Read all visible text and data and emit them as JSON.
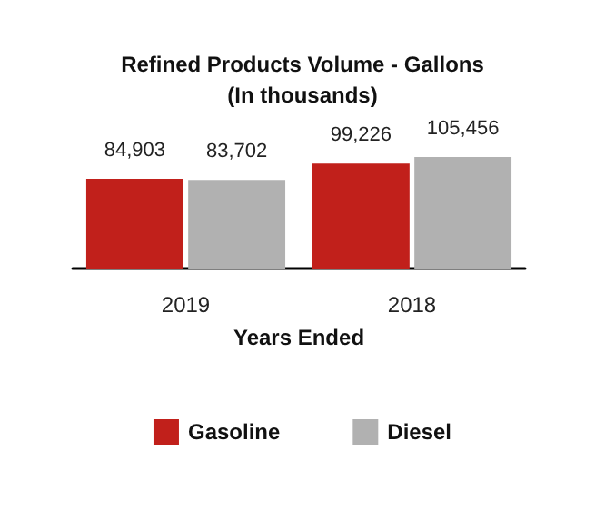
{
  "chart_data": {
    "type": "bar",
    "title": "Refined Products Volume - Gallons\n(In thousands)",
    "xlabel": "Years Ended",
    "categories": [
      "2019",
      "2018"
    ],
    "series": [
      {
        "name": "Gasoline",
        "color": "#c1201b",
        "values": [
          84903,
          99226
        ],
        "value_labels": [
          "84,903",
          "99,226"
        ]
      },
      {
        "name": "Diesel",
        "color": "#b1b1b1",
        "values": [
          83702,
          105456
        ],
        "value_labels": [
          "83,702",
          "105,456"
        ]
      }
    ],
    "tick_labels": "x",
    "legend": "bottom"
  }
}
